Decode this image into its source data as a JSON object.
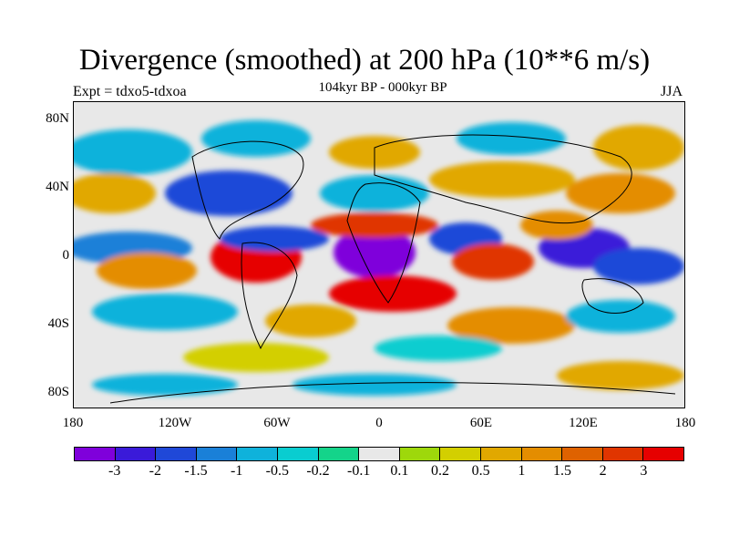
{
  "title": "Divergence (smoothed) at 200 hPa (10**6 m/s)",
  "subtitle": "104kyr BP - 000kyr BP",
  "experiment": "Expt = tdxo5-tdxoa",
  "season": "JJA",
  "y_axis_labels": [
    "80N",
    "40N",
    "0",
    "40S",
    "80S"
  ],
  "x_axis_labels": [
    "180",
    "120W",
    "60W",
    "0",
    "60E",
    "120E",
    "180"
  ],
  "colorbar": {
    "colors": [
      "#7f00db",
      "#3a1ad9",
      "#1f48d8",
      "#1a80d8",
      "#0fb2db",
      "#09cdd0",
      "#14d48a",
      "#e8e8e8",
      "#9ed80b",
      "#d3cf00",
      "#e1a800",
      "#e48d00",
      "#df6200",
      "#e03500",
      "#e60000"
    ],
    "labels": [
      "-3",
      "-2",
      "-1.5",
      "-1",
      "-0.5",
      "-0.2",
      "-0.1",
      "0.1",
      "0.2",
      "0.5",
      "1",
      "1.5",
      "2",
      "3"
    ]
  }
}
